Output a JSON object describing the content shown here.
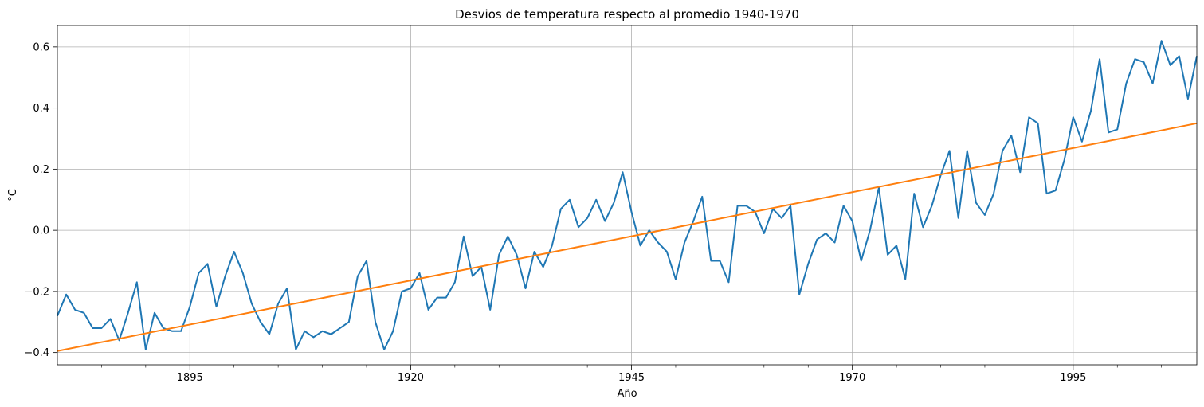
{
  "chart_data": {
    "type": "line",
    "title": "Desvios de temperatura respecto al promedio 1940-1970",
    "xlabel": "Año",
    "ylabel": "°C",
    "xlim": [
      1880,
      2009
    ],
    "ylim": [
      -0.44,
      0.67
    ],
    "x_ticks": [
      1895,
      1920,
      1945,
      1970,
      1995
    ],
    "y_ticks": [
      -0.4,
      -0.2,
      0.0,
      0.2,
      0.4,
      0.6
    ],
    "x_tick_labels": [
      "1895",
      "1920",
      "1945",
      "1970",
      "1995"
    ],
    "y_tick_labels": [
      "−0.4",
      "−0.2",
      "0.0",
      "0.2",
      "0.4",
      "0.6"
    ],
    "grid": true,
    "legend": "none",
    "series": [
      {
        "color": "#1f77b4",
        "x_start": 1880,
        "x_step": 1,
        "values": [
          -0.28,
          -0.21,
          -0.26,
          -0.27,
          -0.32,
          -0.32,
          -0.29,
          -0.36,
          -0.27,
          -0.17,
          -0.39,
          -0.27,
          -0.32,
          -0.33,
          -0.33,
          -0.25,
          -0.14,
          -0.11,
          -0.25,
          -0.15,
          -0.07,
          -0.14,
          -0.24,
          -0.3,
          -0.34,
          -0.24,
          -0.19,
          -0.39,
          -0.33,
          -0.35,
          -0.33,
          -0.34,
          -0.32,
          -0.3,
          -0.15,
          -0.1,
          -0.3,
          -0.39,
          -0.33,
          -0.2,
          -0.19,
          -0.14,
          -0.26,
          -0.22,
          -0.22,
          -0.17,
          -0.02,
          -0.15,
          -0.12,
          -0.26,
          -0.08,
          -0.02,
          -0.08,
          -0.19,
          -0.07,
          -0.12,
          -0.05,
          0.07,
          0.1,
          0.01,
          0.04,
          0.1,
          0.03,
          0.09,
          0.19,
          0.06,
          -0.05,
          0.0,
          -0.04,
          -0.07,
          -0.16,
          -0.04,
          0.03,
          0.11,
          -0.1,
          -0.1,
          -0.17,
          0.08,
          0.08,
          0.06,
          -0.01,
          0.07,
          0.04,
          0.08,
          -0.21,
          -0.11,
          -0.03,
          -0.01,
          -0.04,
          0.08,
          0.03,
          -0.1,
          0.0,
          0.14,
          -0.08,
          -0.05,
          -0.16,
          0.12,
          0.01,
          0.08,
          0.18,
          0.26,
          0.04,
          0.26,
          0.09,
          0.05,
          0.12,
          0.26,
          0.31,
          0.19,
          0.37,
          0.35,
          0.12,
          0.13,
          0.23,
          0.37,
          0.29,
          0.39,
          0.56,
          0.32,
          0.33,
          0.48,
          0.56,
          0.55,
          0.48,
          0.62,
          0.54,
          0.57,
          0.43,
          0.57
        ]
      },
      {
        "color": "#ff7f0e",
        "x": [
          1880,
          2009
        ],
        "values": [
          -0.395,
          0.35
        ]
      }
    ]
  }
}
